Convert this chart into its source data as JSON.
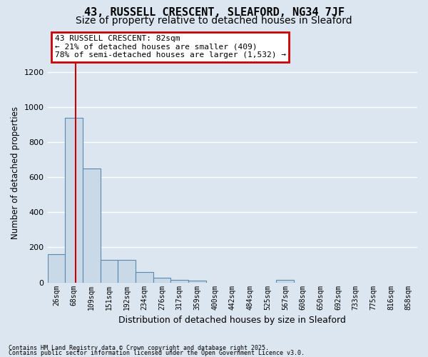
{
  "title1": "43, RUSSELL CRESCENT, SLEAFORD, NG34 7JF",
  "title2": "Size of property relative to detached houses in Sleaford",
  "xlabel": "Distribution of detached houses by size in Sleaford",
  "ylabel": "Number of detached properties",
  "bin_labels": [
    "26sqm",
    "68sqm",
    "109sqm",
    "151sqm",
    "192sqm",
    "234sqm",
    "276sqm",
    "317sqm",
    "359sqm",
    "400sqm",
    "442sqm",
    "484sqm",
    "525sqm",
    "567sqm",
    "608sqm",
    "650sqm",
    "692sqm",
    "733sqm",
    "775sqm",
    "816sqm",
    "858sqm"
  ],
  "bar_heights": [
    160,
    940,
    650,
    130,
    130,
    60,
    25,
    15,
    10,
    0,
    0,
    0,
    0,
    15,
    0,
    0,
    0,
    0,
    0,
    0,
    0
  ],
  "bar_color": "#c9d9e8",
  "bar_edge_color": "#5a8ab0",
  "red_line_x": 1.1,
  "annotation_text": "43 RUSSELL CRESCENT: 82sqm\n← 21% of detached houses are smaller (409)\n78% of semi-detached houses are larger (1,532) →",
  "annotation_box_color": "#ffffff",
  "annotation_box_edge": "#cc0000",
  "red_line_color": "#cc0000",
  "ylim": [
    0,
    1250
  ],
  "yticks": [
    0,
    200,
    400,
    600,
    800,
    1000,
    1200
  ],
  "footer1": "Contains HM Land Registry data © Crown copyright and database right 2025.",
  "footer2": "Contains public sector information licensed under the Open Government Licence v3.0.",
  "bg_color": "#dce6f0",
  "plot_bg_color": "#dce6f0",
  "grid_color": "#ffffff",
  "title_fontsize": 11,
  "subtitle_fontsize": 10
}
